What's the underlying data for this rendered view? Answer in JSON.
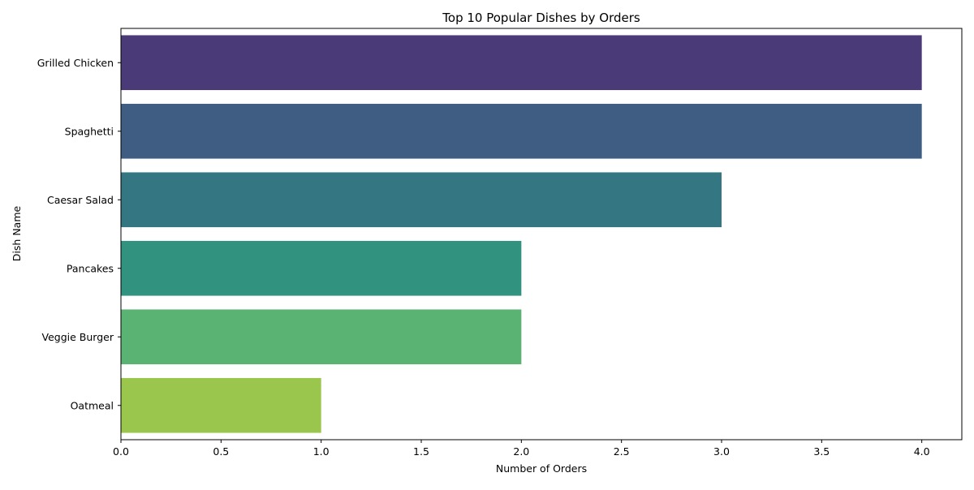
{
  "chart_data": {
    "type": "bar",
    "orientation": "horizontal",
    "title": "Top 10 Popular Dishes by Orders",
    "xlabel": "Number of Orders",
    "ylabel": "Dish Name",
    "categories": [
      "Grilled Chicken",
      "Spaghetti",
      "Caesar Salad",
      "Pancakes",
      "Veggie Burger",
      "Oatmeal"
    ],
    "values": [
      4,
      4,
      3,
      2,
      2,
      1
    ],
    "colors": [
      "#4a3a77",
      "#3f5d82",
      "#347682",
      "#31927f",
      "#5ab273",
      "#9ac64d"
    ],
    "xlim": [
      0,
      4.2
    ],
    "xticks": [
      "0.0",
      "0.5",
      "1.0",
      "1.5",
      "2.0",
      "2.5",
      "3.0",
      "3.5",
      "4.0"
    ],
    "grid": false,
    "legend": "none"
  }
}
